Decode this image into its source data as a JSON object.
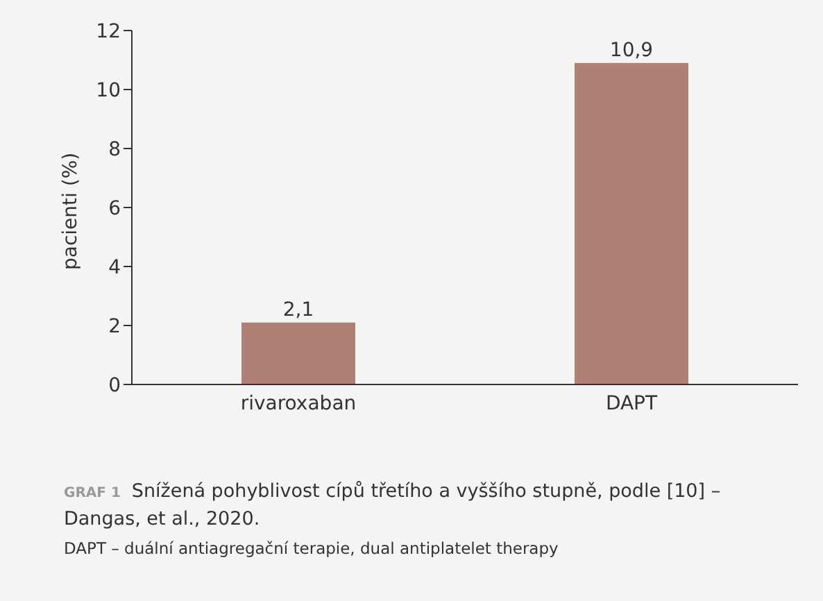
{
  "chart_data": {
    "type": "bar",
    "ylabel": "pacienti (%)",
    "categories": [
      "rivaroxaban",
      "DAPT"
    ],
    "values": [
      2.1,
      10.9
    ],
    "color": "#b07f75",
    "value_labels": [
      "2,1",
      "10,9"
    ],
    "ylim": [
      0,
      12
    ],
    "yticks": [
      0,
      2,
      4,
      6,
      8,
      10,
      12
    ],
    "grid": false,
    "legend": false,
    "annotations": [
      "GRAF 1",
      "Snížená pohyblivost cípů třetího a vyššího stupně, podle [10] – Dangas, et al., 2020.",
      "DAPT – duální antiagregační terapie, dual antiplatelet therapy"
    ]
  }
}
